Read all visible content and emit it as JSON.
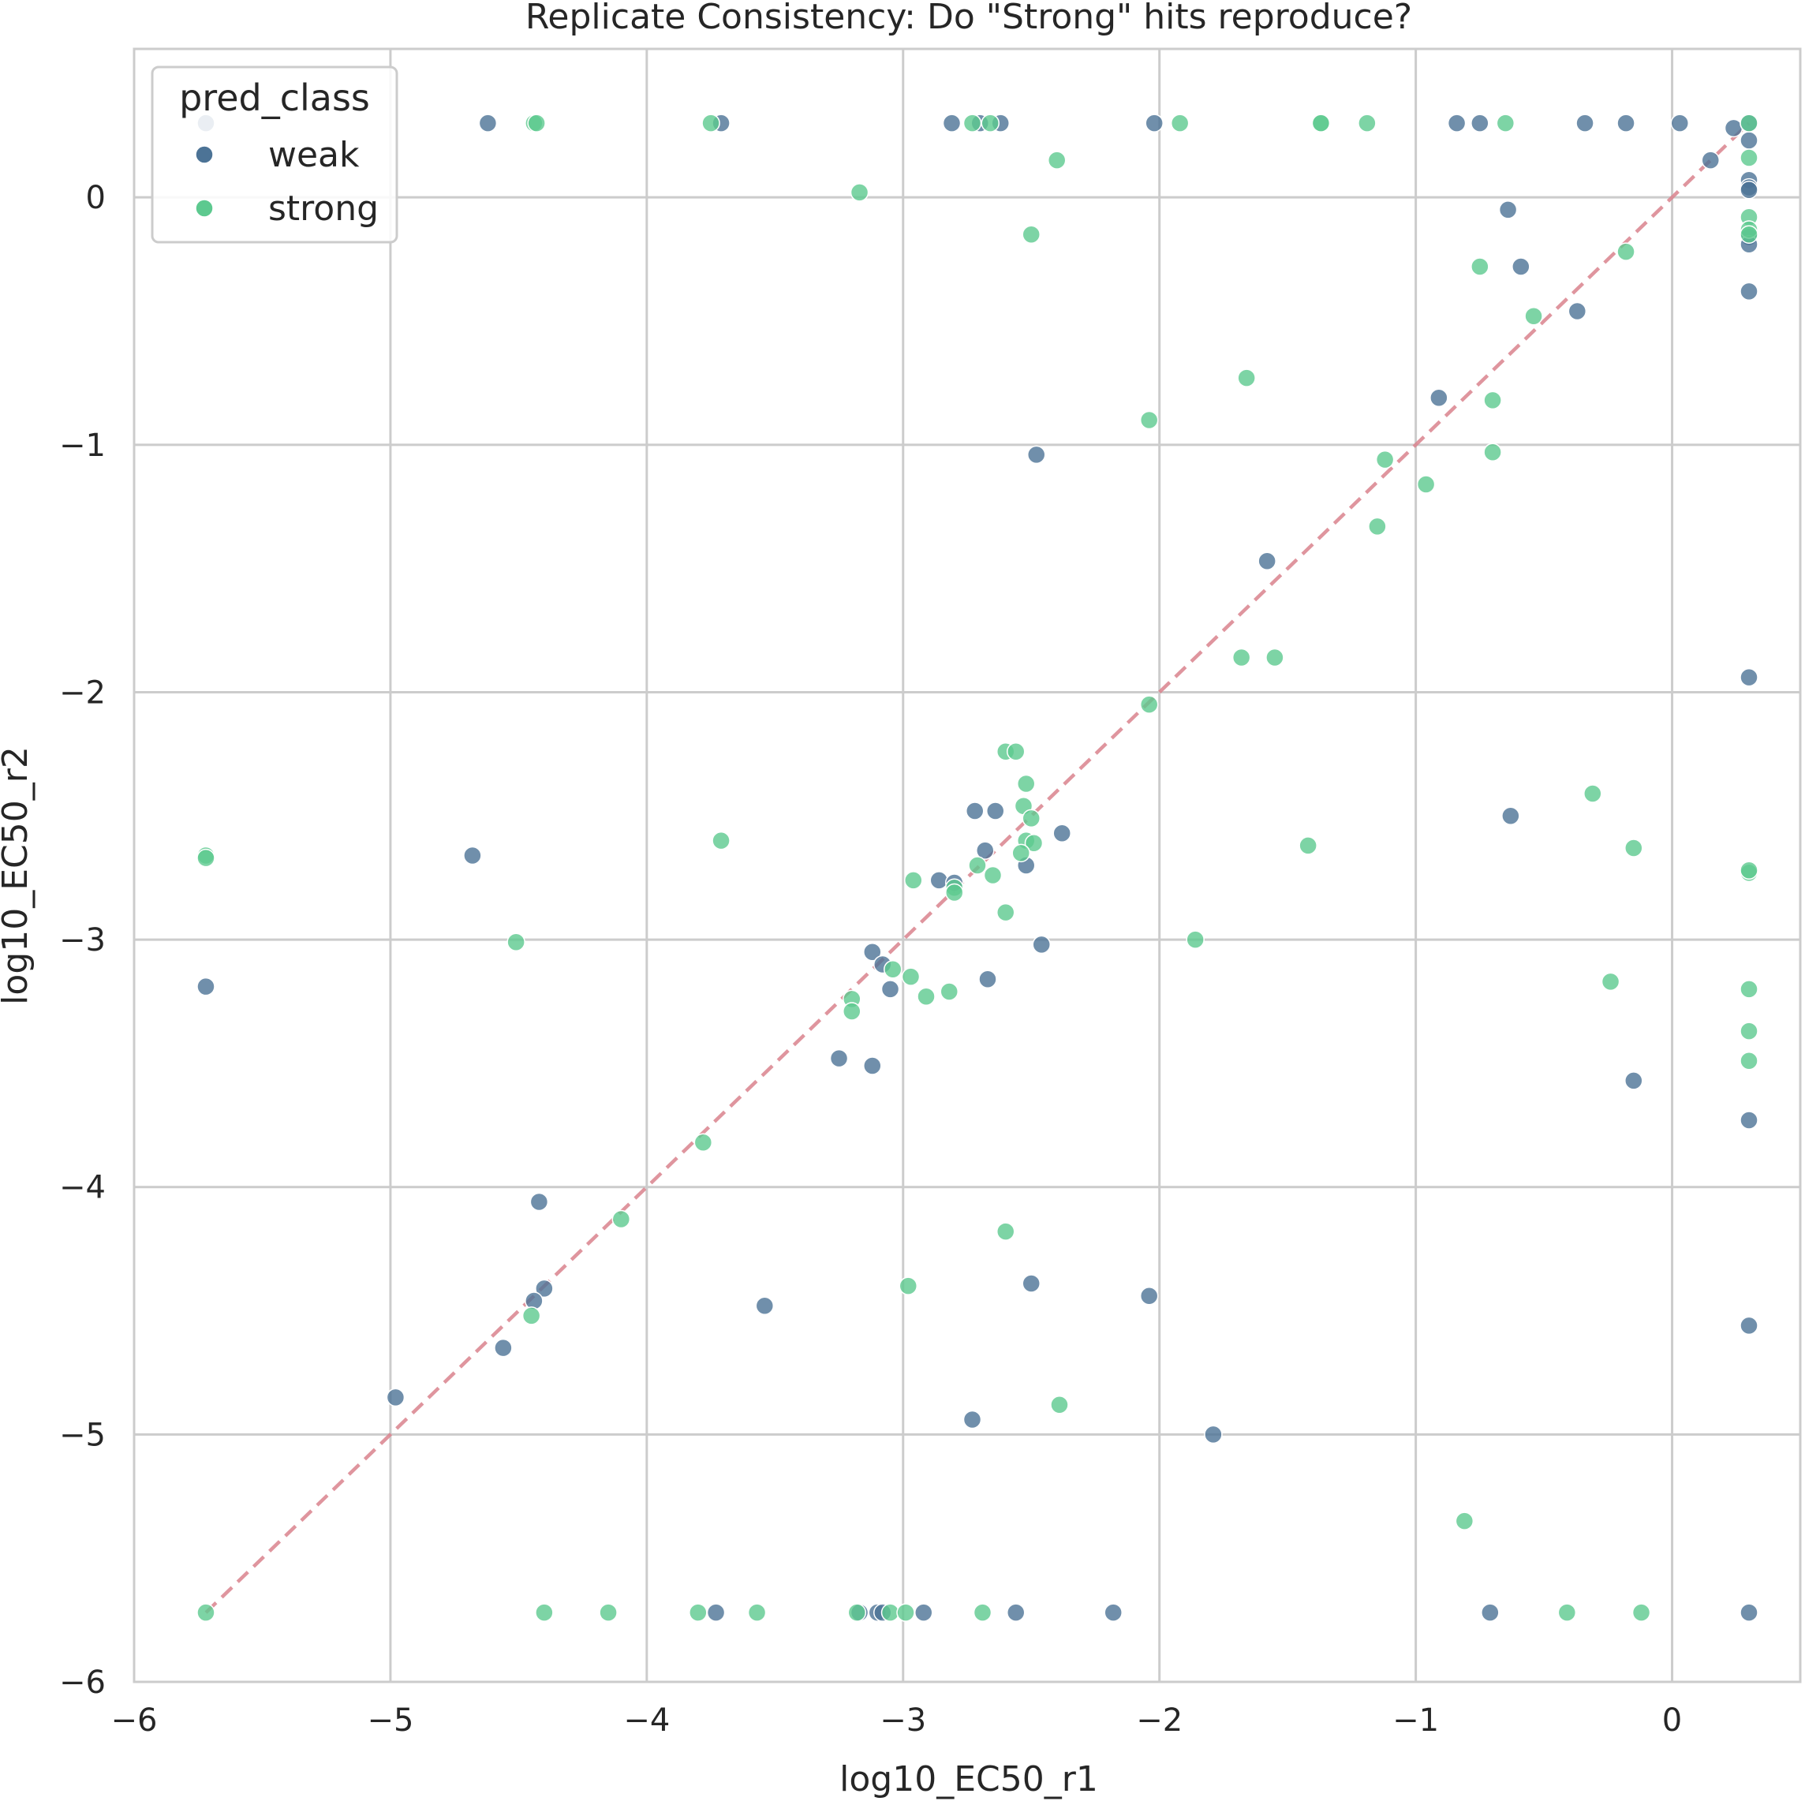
{
  "chart_data": {
    "type": "scatter",
    "title": "Replicate Consistency: Do \"Strong\" hits reproduce?",
    "xlabel": "log10_EC50_r1",
    "ylabel": "log10_EC50_r2",
    "xlim": [
      -6.0,
      0.5
    ],
    "ylim": [
      -6.0,
      0.6
    ],
    "xticks": [
      -6,
      -5,
      -4,
      -3,
      -2,
      -1,
      0
    ],
    "yticks": [
      -6,
      -5,
      -4,
      -3,
      -2,
      -1,
      0
    ],
    "tick_labels_x": [
      "−6",
      "−5",
      "−4",
      "−3",
      "−2",
      "−1",
      "0"
    ],
    "tick_labels_y": [
      "−6",
      "−5",
      "−4",
      "−3",
      "−2",
      "−1",
      "0"
    ],
    "grid": true,
    "reference_line": {
      "from": [
        -5.72,
        -5.72
      ],
      "to": [
        0.3,
        0.3
      ],
      "color": "#d9838d",
      "style": "dashed"
    },
    "legend": {
      "title": "pred_class",
      "placement": "top-left"
    },
    "series": [
      {
        "name": "weak",
        "color": "#4c7396",
        "points": [
          [
            -5.72,
            0.3
          ],
          [
            -4.62,
            0.3
          ],
          [
            -3.71,
            0.3
          ],
          [
            -2.81,
            0.3
          ],
          [
            -2.7,
            0.3
          ],
          [
            -2.62,
            0.3
          ],
          [
            -2.02,
            0.3
          ],
          [
            -0.84,
            0.3
          ],
          [
            -0.75,
            0.3
          ],
          [
            -0.34,
            0.3
          ],
          [
            -0.18,
            0.3
          ],
          [
            0.03,
            0.3
          ],
          [
            0.24,
            0.28
          ],
          [
            0.3,
            0.3
          ],
          [
            0.3,
            0.23
          ],
          [
            0.3,
            0.07
          ],
          [
            0.3,
            0.04
          ],
          [
            0.3,
            0.03
          ],
          [
            0.3,
            -0.16
          ],
          [
            0.3,
            -0.19
          ],
          [
            0.15,
            0.15
          ],
          [
            -0.64,
            -0.05
          ],
          [
            -0.59,
            -0.28
          ],
          [
            -0.37,
            -0.46
          ],
          [
            -0.91,
            -0.81
          ],
          [
            -2.48,
            -1.04
          ],
          [
            -1.58,
            -1.47
          ],
          [
            0.3,
            -1.94
          ],
          [
            -0.63,
            -2.5
          ],
          [
            -2.72,
            -2.48
          ],
          [
            -2.64,
            -2.48
          ],
          [
            -2.38,
            -2.57
          ],
          [
            -2.68,
            -2.64
          ],
          [
            -2.86,
            -2.76
          ],
          [
            -2.8,
            -2.77
          ],
          [
            -2.52,
            -2.7
          ],
          [
            -4.68,
            -2.66
          ],
          [
            -5.72,
            -3.19
          ],
          [
            -3.12,
            -3.05
          ],
          [
            -3.08,
            -3.1
          ],
          [
            -3.05,
            -3.2
          ],
          [
            -2.67,
            -3.16
          ],
          [
            -2.46,
            -3.02
          ],
          [
            -3.25,
            -3.48
          ],
          [
            -3.12,
            -3.51
          ],
          [
            -0.15,
            -3.57
          ],
          [
            0.3,
            -3.73
          ],
          [
            -4.42,
            -4.06
          ],
          [
            -4.4,
            -4.41
          ],
          [
            -4.44,
            -4.46
          ],
          [
            -3.54,
            -4.48
          ],
          [
            -2.5,
            -4.39
          ],
          [
            -2.04,
            -4.44
          ],
          [
            -4.56,
            -4.65
          ],
          [
            -4.98,
            -4.85
          ],
          [
            -2.73,
            -4.94
          ],
          [
            -1.79,
            -5.0
          ],
          [
            0.3,
            -4.56
          ],
          [
            -3.73,
            -5.72
          ],
          [
            -3.17,
            -5.72
          ],
          [
            -3.1,
            -5.72
          ],
          [
            -3.08,
            -5.72
          ],
          [
            -2.92,
            -5.72
          ],
          [
            -2.56,
            -5.72
          ],
          [
            -2.18,
            -5.72
          ],
          [
            -0.71,
            -5.72
          ],
          [
            0.3,
            -5.72
          ],
          [
            0.3,
            -0.38
          ]
        ]
      },
      {
        "name": "strong",
        "color": "#5dc98f",
        "points": [
          [
            -4.44,
            0.3
          ],
          [
            -4.43,
            0.3
          ],
          [
            -3.75,
            0.3
          ],
          [
            -2.73,
            0.3
          ],
          [
            -2.66,
            0.3
          ],
          [
            -1.92,
            0.3
          ],
          [
            -1.37,
            0.3
          ],
          [
            -1.37,
            0.3
          ],
          [
            -1.19,
            0.3
          ],
          [
            -0.65,
            0.3
          ],
          [
            0.3,
            0.3
          ],
          [
            0.3,
            0.16
          ],
          [
            -2.4,
            0.15
          ],
          [
            -3.17,
            0.02
          ],
          [
            0.3,
            -0.08
          ],
          [
            0.3,
            -0.13
          ],
          [
            0.3,
            -0.15
          ],
          [
            -2.5,
            -0.15
          ],
          [
            -0.75,
            -0.28
          ],
          [
            -0.18,
            -0.22
          ],
          [
            -0.54,
            -0.48
          ],
          [
            -1.66,
            -0.73
          ],
          [
            -2.04,
            -0.9
          ],
          [
            -0.7,
            -0.82
          ],
          [
            -0.7,
            -1.03
          ],
          [
            -1.12,
            -1.06
          ],
          [
            -0.96,
            -1.16
          ],
          [
            -1.15,
            -1.33
          ],
          [
            -1.68,
            -1.86
          ],
          [
            -1.55,
            -1.86
          ],
          [
            -2.04,
            -2.05
          ],
          [
            -2.6,
            -2.24
          ],
          [
            -2.56,
            -2.24
          ],
          [
            -2.52,
            -2.37
          ],
          [
            -2.53,
            -2.46
          ],
          [
            -2.5,
            -2.51
          ],
          [
            -2.52,
            -2.6
          ],
          [
            -2.49,
            -2.61
          ],
          [
            -2.54,
            -2.65
          ],
          [
            -0.31,
            -2.41
          ],
          [
            -1.42,
            -2.62
          ],
          [
            -0.15,
            -2.63
          ],
          [
            0.3,
            -2.73
          ],
          [
            0.3,
            -2.72
          ],
          [
            -5.72,
            -2.66
          ],
          [
            -5.72,
            -2.67
          ],
          [
            -3.71,
            -2.6
          ],
          [
            -2.71,
            -2.7
          ],
          [
            -2.65,
            -2.74
          ],
          [
            -2.96,
            -2.76
          ],
          [
            -2.8,
            -2.79
          ],
          [
            -2.8,
            -2.81
          ],
          [
            -2.6,
            -2.89
          ],
          [
            -4.51,
            -3.01
          ],
          [
            -1.86,
            -3.0
          ],
          [
            -3.04,
            -3.12
          ],
          [
            -2.97,
            -3.15
          ],
          [
            -2.91,
            -3.23
          ],
          [
            -2.82,
            -3.21
          ],
          [
            -3.2,
            -3.24
          ],
          [
            -3.2,
            -3.29
          ],
          [
            -0.24,
            -3.17
          ],
          [
            0.3,
            -3.2
          ],
          [
            0.3,
            -3.37
          ],
          [
            0.3,
            -3.49
          ],
          [
            -3.78,
            -3.82
          ],
          [
            -4.1,
            -4.13
          ],
          [
            -2.6,
            -4.18
          ],
          [
            -2.98,
            -4.4
          ],
          [
            -4.45,
            -4.52
          ],
          [
            -2.39,
            -4.88
          ],
          [
            -0.81,
            -5.35
          ],
          [
            -5.72,
            -5.72
          ],
          [
            -4.4,
            -5.72
          ],
          [
            -4.15,
            -5.72
          ],
          [
            -3.8,
            -5.72
          ],
          [
            -3.57,
            -5.72
          ],
          [
            -3.18,
            -5.72
          ],
          [
            -3.05,
            -5.72
          ],
          [
            -2.99,
            -5.72
          ],
          [
            -2.69,
            -5.72
          ],
          [
            -0.41,
            -5.72
          ],
          [
            -0.12,
            -5.72
          ]
        ]
      }
    ]
  }
}
